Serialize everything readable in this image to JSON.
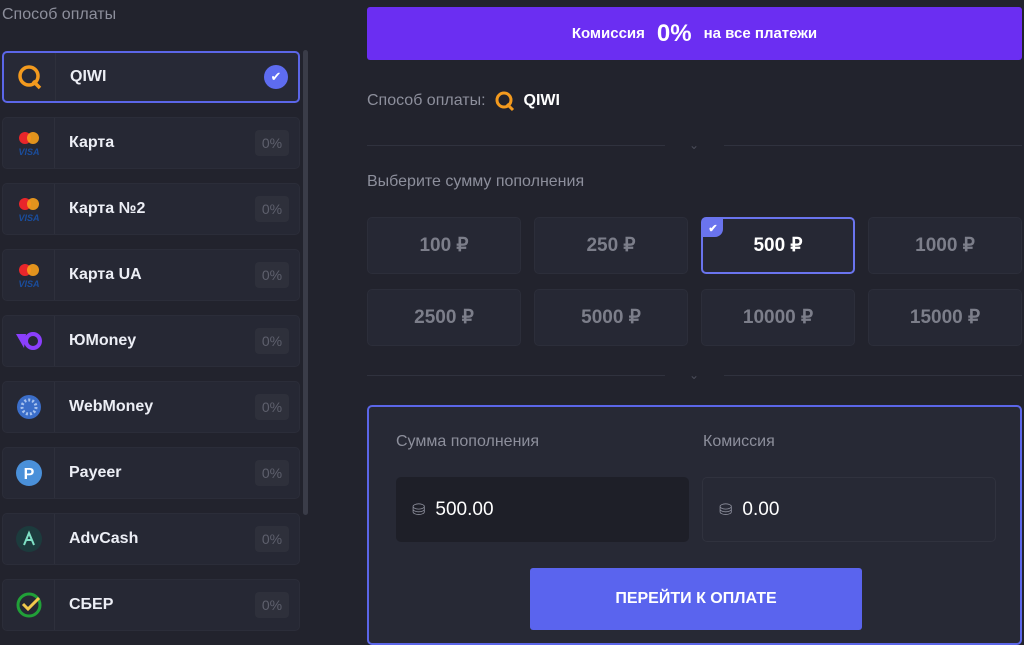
{
  "sidebar": {
    "title": "Способ оплаты",
    "items": [
      {
        "label": "QIWI",
        "icon": "qiwi-icon",
        "selected": true
      },
      {
        "label": "Карта",
        "icon": "card-icon",
        "fee": "0%"
      },
      {
        "label": "Карта №2",
        "icon": "card-icon",
        "fee": "0%"
      },
      {
        "label": "Карта UA",
        "icon": "card-icon",
        "fee": "0%"
      },
      {
        "label": "ЮMoney",
        "icon": "yoomoney-icon",
        "fee": "0%"
      },
      {
        "label": "WebMoney",
        "icon": "webmoney-icon",
        "fee": "0%"
      },
      {
        "label": "Payeer",
        "icon": "payeer-icon",
        "fee": "0%"
      },
      {
        "label": "AdvCash",
        "icon": "advcash-icon",
        "fee": "0%"
      },
      {
        "label": "СБЕР",
        "icon": "sber-icon",
        "fee": "0%"
      }
    ]
  },
  "banner": {
    "pre": "Комиссия",
    "value": "0%",
    "post": "на все платежи",
    "color": "#6b2ef2"
  },
  "method": {
    "label": "Способ оплаты:",
    "value": "QIWI"
  },
  "amounts": {
    "title": "Выберите сумму пополнения",
    "options": [
      "100 ₽",
      "250 ₽",
      "500 ₽",
      "1000 ₽",
      "2500 ₽",
      "5000 ₽",
      "10000 ₽",
      "15000 ₽"
    ],
    "selected": "500 ₽"
  },
  "summary": {
    "sum_label": "Сумма пополнения",
    "sum_value": "500.00",
    "fee_label": "Комиссия",
    "fee_value": "0.00",
    "pay_button": "ПЕРЕЙТИ К ОПЛАТЕ",
    "accent": "#5a64ee"
  }
}
